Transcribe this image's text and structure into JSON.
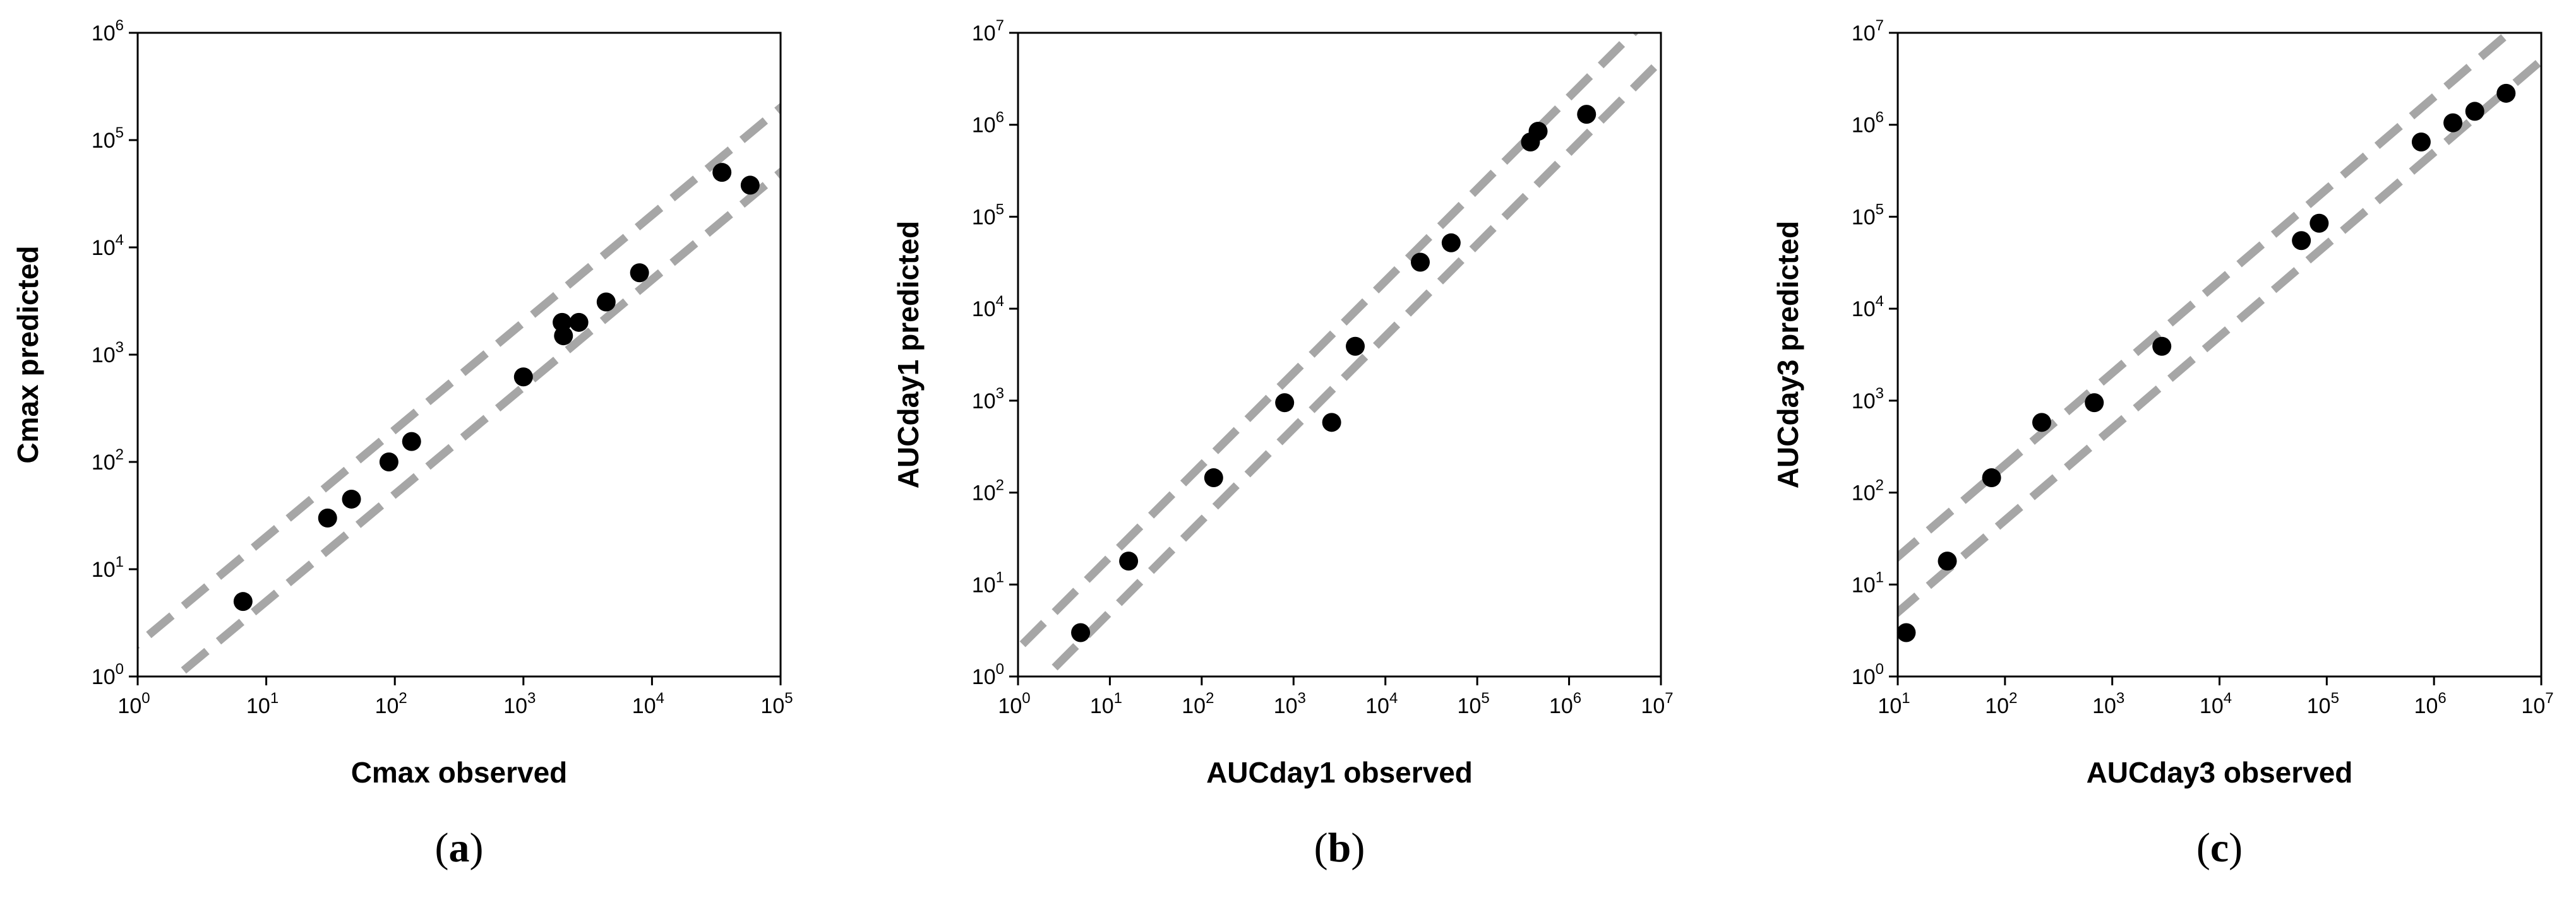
{
  "chart_data": [
    {
      "type": "scatter",
      "panel_label": "a",
      "xlabel": "Cmax observed",
      "ylabel": "Cmax predicted",
      "xscale": "log",
      "yscale": "log",
      "xlim": [
        1,
        100000
      ],
      "ylim": [
        1,
        1000000
      ],
      "x_ticks": [
        "10|0",
        "10|1",
        "10|2",
        "10|3",
        "10|4",
        "10|5"
      ],
      "y_ticks": [
        "10|0",
        "10|1",
        "10|2",
        "10|3",
        "10|4",
        "10|5",
        "10|6"
      ],
      "reference_lines": [
        {
          "style": "dashed",
          "color": "#a6a6a6",
          "y_equals_x_times": 2
        },
        {
          "style": "dashed",
          "color": "#a6a6a6",
          "y_equals_x_times": 0.5
        }
      ],
      "series": [
        {
          "color": "#000000",
          "points": [
            [
              6.6,
              5
            ],
            [
              30,
              30
            ],
            [
              46,
              45
            ],
            [
              90,
              100
            ],
            [
              135,
              155
            ],
            [
              1000,
              620
            ],
            [
              2000,
              2000
            ],
            [
              2050,
              1500
            ],
            [
              2700,
              2000
            ],
            [
              4400,
              3100
            ],
            [
              8000,
              5800
            ],
            [
              35000,
              50000
            ],
            [
              58000,
              38000
            ]
          ]
        }
      ]
    },
    {
      "type": "scatter",
      "panel_label": "b",
      "xlabel": "AUCday1 observed",
      "ylabel": "AUCday1 predicted",
      "xscale": "log",
      "yscale": "log",
      "xlim": [
        1,
        10000000
      ],
      "ylim": [
        1,
        10000000
      ],
      "x_ticks": [
        "10|0",
        "10|1",
        "10|2",
        "10|3",
        "10|4",
        "10|5",
        "10|6",
        "10|7"
      ],
      "y_ticks": [
        "10|0",
        "10|1",
        "10|2",
        "10|3",
        "10|4",
        "10|5",
        "10|6",
        "10|7"
      ],
      "reference_lines": [
        {
          "style": "dashed",
          "color": "#a6a6a6",
          "y_equals_x_times": 2
        },
        {
          "style": "dashed",
          "color": "#a6a6a6",
          "y_equals_x_times": 0.5
        }
      ],
      "series": [
        {
          "color": "#000000",
          "points": [
            [
              4.8,
              3
            ],
            [
              16,
              18
            ],
            [
              135,
              145
            ],
            [
              800,
              950
            ],
            [
              2600,
              580
            ],
            [
              4700,
              3900
            ],
            [
              24000,
              32000
            ],
            [
              52000,
              52000
            ],
            [
              380000,
              650000
            ],
            [
              460000,
              850000
            ],
            [
              1550000,
              1300000
            ]
          ]
        }
      ]
    },
    {
      "type": "scatter",
      "panel_label": "c",
      "xlabel": "AUCday3 observed",
      "ylabel": "AUCday3 predicted",
      "xscale": "log",
      "yscale": "log",
      "xlim": [
        10,
        10000000
      ],
      "ylim": [
        1,
        10000000
      ],
      "x_ticks": [
        "10|1",
        "10|2",
        "10|3",
        "10|4",
        "10|5",
        "10|6",
        "10|7"
      ],
      "y_ticks": [
        "10|0",
        "10|1",
        "10|2",
        "10|3",
        "10|4",
        "10|5",
        "10|6",
        "10|7"
      ],
      "reference_lines": [
        {
          "style": "dashed",
          "color": "#a6a6a6",
          "y_equals_x_times": 2
        },
        {
          "style": "dashed",
          "color": "#a6a6a6",
          "y_equals_x_times": 0.5
        }
      ],
      "series": [
        {
          "color": "#000000",
          "points": [
            [
              12,
              3
            ],
            [
              29,
              18
            ],
            [
              75,
              145
            ],
            [
              220,
              580
            ],
            [
              680,
              950
            ],
            [
              2900,
              3900
            ],
            [
              58000,
              55000
            ],
            [
              85000,
              85000
            ],
            [
              760000,
              650000
            ],
            [
              1500000,
              1050000
            ],
            [
              2400000,
              1400000
            ],
            [
              4700000,
              2200000
            ]
          ]
        }
      ]
    }
  ]
}
